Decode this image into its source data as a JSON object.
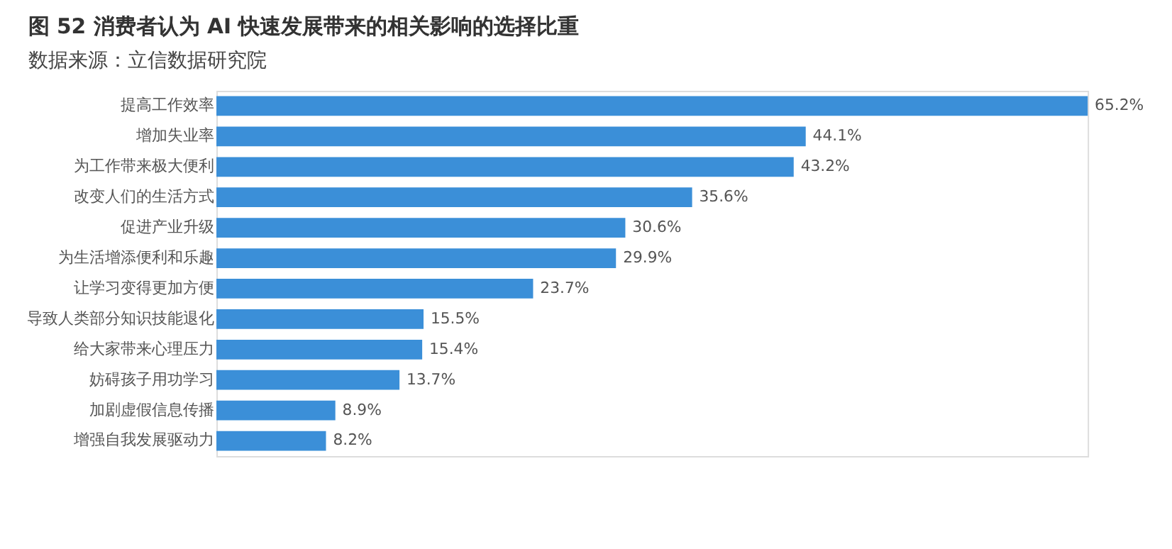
{
  "chart_data": {
    "type": "bar",
    "orientation": "horizontal",
    "title": "图 52  消费者认为 AI 快速发展带来的相关影响的选择比重",
    "subtitle": "数据来源：立信数据研究院",
    "categories": [
      "提高工作效率",
      "增加失业率",
      "为工作带来极大便利",
      "改变人们的生活方式",
      "促进产业升级",
      "为生活增添便利和乐趣",
      "让学习变得更加方便",
      "导致人类部分知识技能退化",
      "给大家带来心理压力",
      "妨碍孩子用功学习",
      "加剧虚假信息传播",
      "增强自我发展驱动力"
    ],
    "values": [
      65.2,
      44.1,
      43.2,
      35.6,
      30.6,
      29.9,
      23.7,
      15.5,
      15.4,
      13.7,
      8.9,
      8.2
    ],
    "value_labels": [
      "65.2%",
      "44.1%",
      "43.2%",
      "35.6%",
      "30.6%",
      "29.9%",
      "23.7%",
      "15.5%",
      "15.4%",
      "13.7%",
      "8.9%",
      "8.2%"
    ],
    "color": "#3b8fd8",
    "tick_labels": "y"
  }
}
